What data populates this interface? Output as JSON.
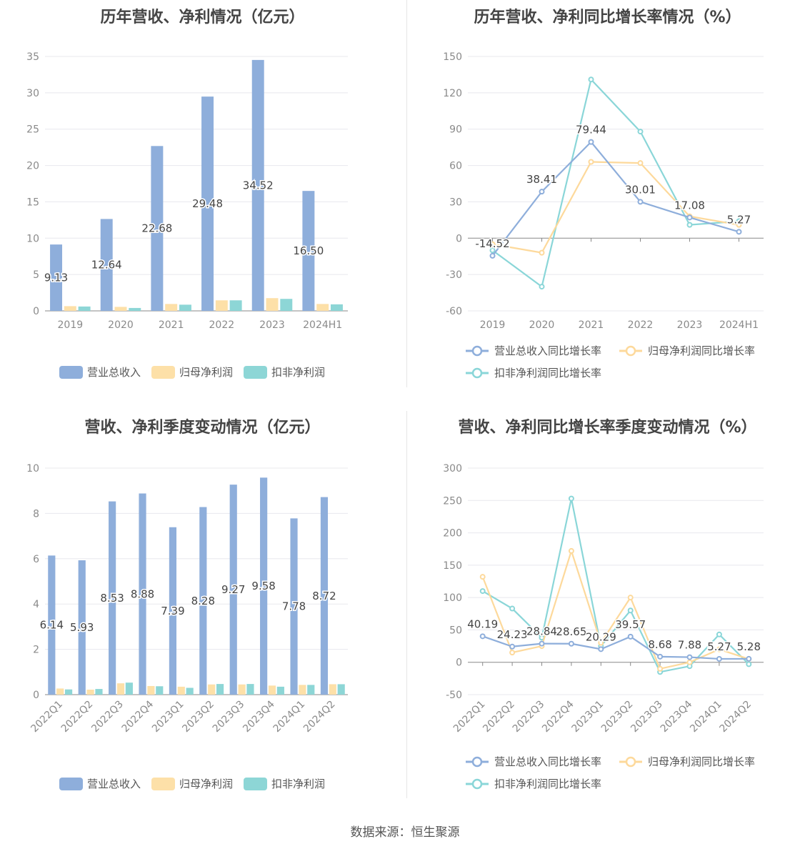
{
  "source": "数据来源：恒生聚源",
  "colors": {
    "revenue": "#8eaedb",
    "net": "#fde0a8",
    "deducted": "#8dd6d6",
    "revenue_line": "#8eaedb",
    "net_line": "#fdd99b",
    "deducted_line": "#8ad6d8"
  },
  "chart_data": [
    {
      "type": "bar",
      "title": "历年营收、净利情况（亿元）",
      "categories": [
        "2019",
        "2020",
        "2021",
        "2022",
        "2023",
        "2024H1"
      ],
      "ylim": [
        0,
        35
      ],
      "yticks": [
        "0",
        "5",
        "10",
        "15",
        "20",
        "25",
        "30",
        "35"
      ],
      "grid": true,
      "legend_position": "bottom",
      "series": [
        {
          "name": "营业总收入",
          "values": [
            9.13,
            12.64,
            22.68,
            29.48,
            34.52,
            16.5
          ],
          "labels": [
            "9.13",
            "12.64",
            "22.68",
            "29.48",
            "34.52",
            "16.50"
          ]
        },
        {
          "name": "归母净利润",
          "values": [
            0.65,
            0.55,
            0.95,
            1.45,
            1.75,
            0.95
          ]
        },
        {
          "name": "扣非净利润",
          "values": [
            0.6,
            0.4,
            0.85,
            1.45,
            1.65,
            0.9
          ]
        }
      ]
    },
    {
      "type": "line",
      "title": "历年营收、净利同比增长率情况（%）",
      "categories": [
        "2019",
        "2020",
        "2021",
        "2022",
        "2023",
        "2024H1"
      ],
      "ylim": [
        -60,
        150
      ],
      "yticks": [
        "-60",
        "-30",
        "0",
        "30",
        "60",
        "90",
        "120",
        "150"
      ],
      "grid": true,
      "legend_position": "bottom",
      "series": [
        {
          "name": "营业总收入同比增长率",
          "values": [
            -14.52,
            38.41,
            79.44,
            30.01,
            17.08,
            5.27
          ],
          "labels": [
            "-14.52",
            "38.41",
            "79.44",
            "30.01",
            "17.08",
            "5.27"
          ]
        },
        {
          "name": "归母净利润同比增长率",
          "values": [
            -5,
            -12,
            63,
            62,
            18,
            11
          ]
        },
        {
          "name": "扣非净利润同比增长率",
          "values": [
            -10,
            -40,
            131,
            88,
            11,
            14
          ]
        }
      ]
    },
    {
      "type": "bar",
      "title": "营收、净利季度变动情况（亿元）",
      "categories": [
        "2022Q1",
        "2022Q2",
        "2022Q3",
        "2022Q4",
        "2023Q1",
        "2023Q2",
        "2023Q3",
        "2023Q4",
        "2024Q1",
        "2024Q2"
      ],
      "ylim": [
        0,
        10
      ],
      "yticks": [
        "0",
        "2",
        "4",
        "6",
        "8",
        "10"
      ],
      "grid": true,
      "legend_position": "bottom",
      "series": [
        {
          "name": "营业总收入",
          "values": [
            6.14,
            5.93,
            8.53,
            8.88,
            7.39,
            8.28,
            9.27,
            9.58,
            7.78,
            8.72
          ],
          "labels": [
            "6.14",
            "5.93",
            "8.53",
            "8.88",
            "7.39",
            "8.28",
            "9.27",
            "9.58",
            "7.78",
            "8.72"
          ]
        },
        {
          "name": "归母净利润",
          "values": [
            0.27,
            0.22,
            0.5,
            0.38,
            0.35,
            0.45,
            0.45,
            0.4,
            0.43,
            0.46
          ]
        },
        {
          "name": "扣非净利润",
          "values": [
            0.23,
            0.25,
            0.53,
            0.37,
            0.3,
            0.47,
            0.47,
            0.35,
            0.43,
            0.46
          ]
        }
      ]
    },
    {
      "type": "line",
      "title": "营收、净利同比增长率季度变动情况（%）",
      "categories": [
        "2022Q1",
        "2022Q2",
        "2022Q3",
        "2022Q4",
        "2023Q1",
        "2023Q2",
        "2023Q3",
        "2023Q4",
        "2024Q1",
        "2024Q2"
      ],
      "ylim": [
        -50,
        300
      ],
      "yticks": [
        "-50",
        "0",
        "50",
        "100",
        "150",
        "200",
        "250",
        "300"
      ],
      "grid": true,
      "legend_position": "bottom",
      "series": [
        {
          "name": "营业总收入同比增长率",
          "values": [
            40.19,
            24.23,
            28.84,
            28.65,
            20.29,
            39.57,
            8.68,
            7.88,
            5.27,
            5.28
          ],
          "labels": [
            "40.19",
            "24.23",
            "28.84",
            "28.65",
            "20.29",
            "39.57",
            "8.68",
            "7.88",
            "5.27",
            "5.28"
          ]
        },
        {
          "name": "归母净利润同比增长率",
          "values": [
            132,
            15,
            25,
            172,
            30,
            100,
            -10,
            0,
            20,
            5
          ]
        },
        {
          "name": "扣非净利润同比增长率",
          "values": [
            110,
            83,
            38,
            253,
            25,
            80,
            -15,
            -6,
            43,
            -3
          ]
        }
      ]
    }
  ]
}
